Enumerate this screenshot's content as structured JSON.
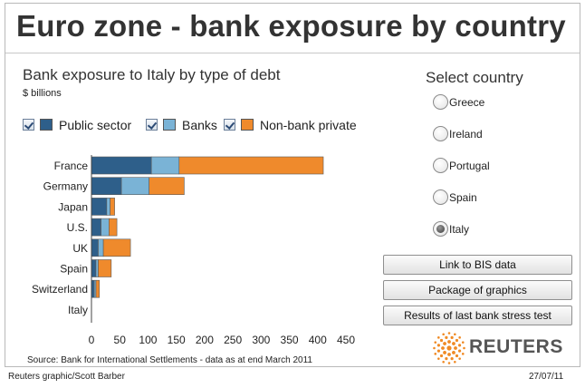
{
  "page_title": "Euro zone - bank exposure by country",
  "chart": {
    "title": "Bank exposure to Italy by type of debt",
    "unit": "$ billions",
    "source": "Source: Bank for International Settlements - data as at end March 2011"
  },
  "legend": [
    {
      "label": "Public sector",
      "color": "#2e5f8a",
      "checked": true
    },
    {
      "label": "Banks",
      "color": "#7ab3d6",
      "checked": true
    },
    {
      "label": "Non-bank private",
      "color": "#ef8a2c",
      "checked": true
    }
  ],
  "chart_data": {
    "type": "bar",
    "orientation": "horizontal",
    "stacked": true,
    "title": "Bank exposure to Italy by type of debt",
    "unit": "$ billions",
    "categories": [
      "France",
      "Germany",
      "Japan",
      "U.S.",
      "UK",
      "Spain",
      "Switzerland",
      "Italy"
    ],
    "series": [
      {
        "name": "Public sector",
        "color": "#2e5f8a",
        "values": [
          106,
          53,
          27,
          17,
          12,
          8,
          5,
          0
        ]
      },
      {
        "name": "Banks",
        "color": "#7ab3d6",
        "values": [
          49,
          49,
          6,
          14,
          9,
          4,
          3,
          0
        ]
      },
      {
        "name": "Non-bank private",
        "color": "#ef8a2c",
        "values": [
          255,
          62,
          8,
          14,
          48,
          23,
          6,
          0
        ]
      }
    ],
    "xlim": [
      0,
      450
    ],
    "xticks": [
      0,
      50,
      100,
      150,
      200,
      250,
      300,
      350,
      400,
      450
    ],
    "grid": false,
    "legend_position": "top"
  },
  "selector": {
    "title": "Select country",
    "options": [
      {
        "label": "Greece",
        "selected": false
      },
      {
        "label": "Ireland",
        "selected": false
      },
      {
        "label": "Portugal",
        "selected": false
      },
      {
        "label": "Spain",
        "selected": false
      },
      {
        "label": "Italy",
        "selected": true
      }
    ]
  },
  "buttons": [
    {
      "label": "Link to BIS data"
    },
    {
      "label": "Package of graphics"
    },
    {
      "label": "Results of last bank stress test"
    }
  ],
  "brand": {
    "name": "REUTERS",
    "color": "#f08a24"
  },
  "footer": {
    "credit": "Reuters graphic/Scott Barber",
    "date": "27/07/11"
  }
}
